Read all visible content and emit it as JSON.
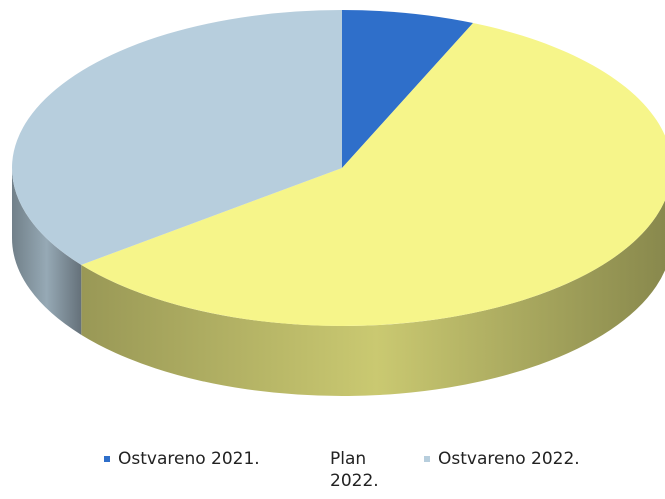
{
  "chart_data": {
    "type": "pie",
    "style": "3d",
    "title": "",
    "categories": [
      "Ostvareno 2021.",
      "Plan 2022.",
      "Ostvareno 2022."
    ],
    "values": [
      6.5,
      58,
      35.5
    ],
    "colors": [
      "#2f6fca",
      "#f6f58a",
      "#b7cedd"
    ],
    "legend": {
      "position": "bottom",
      "entries": [
        "Ostvareno 2021.",
        "Plan 2022.",
        "Ostvareno 2022."
      ]
    }
  }
}
